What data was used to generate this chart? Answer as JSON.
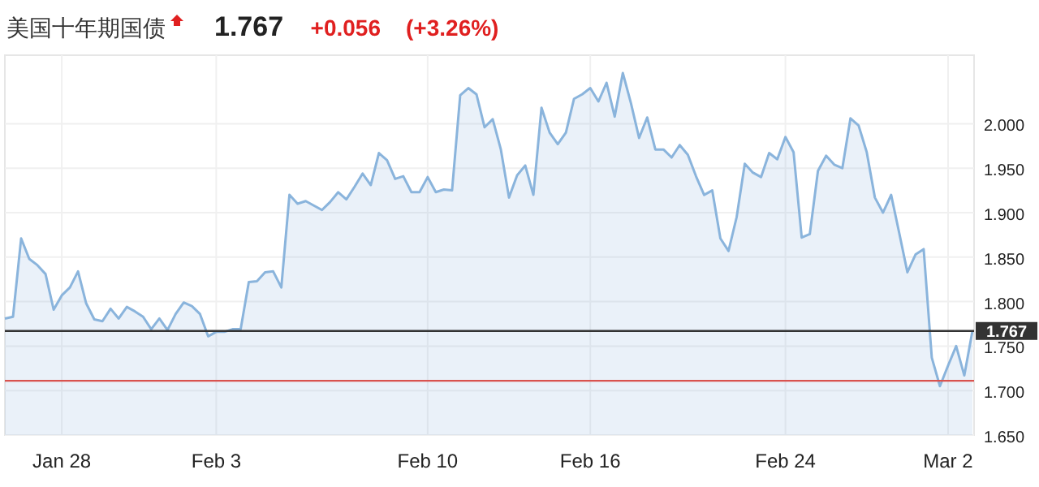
{
  "chart_data": {
    "type": "area",
    "title": "美国十年期国债",
    "annotations": [
      "1.767",
      "+0.056",
      "(+3.26%)"
    ],
    "categories": [
      null,
      null,
      null,
      null,
      null,
      null,
      null,
      "Jan 28",
      null,
      null,
      null,
      null,
      null,
      null,
      null,
      null,
      null,
      null,
      null,
      null,
      null,
      null,
      null,
      null,
      null,
      null,
      "Feb 3",
      null,
      null,
      null,
      null,
      null,
      null,
      null,
      null,
      null,
      null,
      null,
      null,
      null,
      null,
      null,
      null,
      null,
      null,
      null,
      null,
      null,
      null,
      null,
      null,
      null,
      "Feb 10",
      null,
      null,
      null,
      null,
      null,
      null,
      null,
      null,
      null,
      null,
      null,
      null,
      null,
      null,
      null,
      null,
      null,
      null,
      null,
      "Feb 16",
      null,
      null,
      null,
      null,
      null,
      null,
      null,
      null,
      null,
      null,
      null,
      null,
      null,
      null,
      null,
      null,
      null,
      null,
      null,
      null,
      null,
      null,
      null,
      "Feb 24",
      null,
      null,
      null,
      null,
      null,
      null,
      null,
      null,
      null,
      null,
      null,
      null,
      null,
      null,
      null,
      null,
      null,
      null,
      null,
      "Mar 2",
      null,
      null,
      null
    ],
    "series": [
      {
        "color": "#8ab4dc",
        "values": [
          1.781,
          1.783,
          1.871,
          1.848,
          1.841,
          1.831,
          1.791,
          1.807,
          1.816,
          1.834,
          1.798,
          1.78,
          1.778,
          1.792,
          1.781,
          1.794,
          1.789,
          1.783,
          1.769,
          1.781,
          1.768,
          1.786,
          1.799,
          1.795,
          1.786,
          1.761,
          1.766,
          1.766,
          1.769,
          1.769,
          1.822,
          1.823,
          1.833,
          1.834,
          1.816,
          1.92,
          1.91,
          1.913,
          1.908,
          1.903,
          1.912,
          1.923,
          1.915,
          1.929,
          1.944,
          1.931,
          1.967,
          1.959,
          1.938,
          1.941,
          1.923,
          1.923,
          1.94,
          1.923,
          1.926,
          1.925,
          2.032,
          2.04,
          2.033,
          1.996,
          2.005,
          1.971,
          1.917,
          1.942,
          1.953,
          1.92,
          2.018,
          1.99,
          1.977,
          1.99,
          2.028,
          2.033,
          2.04,
          2.025,
          2.046,
          2.008,
          2.057,
          2.023,
          1.984,
          2.007,
          1.971,
          1.971,
          1.962,
          1.976,
          1.965,
          1.941,
          1.92,
          1.925,
          1.871,
          1.857,
          1.895,
          1.955,
          1.945,
          1.94,
          1.967,
          1.96,
          1.985,
          1.968,
          1.872,
          1.876,
          1.947,
          1.964,
          1.954,
          1.95,
          2.006,
          1.998,
          1.968,
          1.917,
          1.9,
          1.92,
          1.877,
          1.833,
          1.853,
          1.859,
          1.737,
          1.705,
          1.728,
          1.75,
          1.717,
          1.767
        ]
      }
    ],
    "ylim": [
      1.65,
      2.077
    ],
    "yticks": [
      {
        "value": 1.65,
        "label": "1.650"
      },
      {
        "value": 1.7,
        "label": "1.700"
      },
      {
        "value": 1.75,
        "label": "1.750"
      },
      {
        "value": 1.8,
        "label": "1.800"
      },
      {
        "value": 1.85,
        "label": "1.850"
      },
      {
        "value": 1.9,
        "label": "1.900"
      },
      {
        "value": 1.95,
        "label": "1.950"
      },
      {
        "value": 2.0,
        "label": "2.000"
      }
    ],
    "ref_lines": [
      {
        "axis": "y",
        "value": 1.767,
        "label": "1.767",
        "color": "#333333"
      },
      {
        "axis": "y",
        "value": 1.711,
        "label": null,
        "color": "#d9534f"
      }
    ],
    "grid": true
  }
}
